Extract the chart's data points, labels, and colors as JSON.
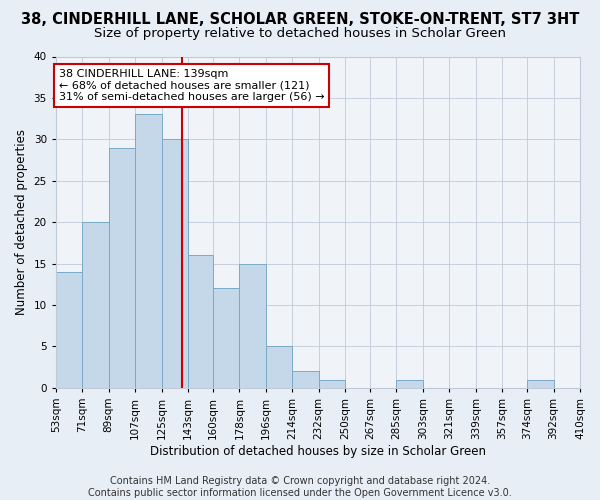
{
  "title": "38, CINDERHILL LANE, SCHOLAR GREEN, STOKE-ON-TRENT, ST7 3HT",
  "subtitle": "Size of property relative to detached houses in Scholar Green",
  "xlabel": "Distribution of detached houses by size in Scholar Green",
  "ylabel": "Number of detached properties",
  "bin_edges": [
    53,
    71,
    89,
    107,
    125,
    143,
    160,
    178,
    196,
    214,
    232,
    250,
    267,
    285,
    303,
    321,
    339,
    357,
    374,
    392,
    410
  ],
  "counts": [
    14,
    20,
    29,
    33,
    30,
    16,
    12,
    15,
    5,
    2,
    1,
    0,
    0,
    1,
    0,
    0,
    0,
    0,
    1,
    0
  ],
  "bar_color": "#c5d8ea",
  "bar_edge_color": "#7aaac8",
  "vline_x": 139,
  "vline_color": "#cc0000",
  "annotation_line1": "38 CINDERHILL LANE: 139sqm",
  "annotation_line2": "← 68% of detached houses are smaller (121)",
  "annotation_line3": "31% of semi-detached houses are larger (56) →",
  "annotation_box_color": "#cc0000",
  "annotation_box_bg": "#ffffff",
  "ylim": [
    0,
    40
  ],
  "yticks": [
    0,
    5,
    10,
    15,
    20,
    25,
    30,
    35,
    40
  ],
  "tick_labels": [
    "53sqm",
    "71sqm",
    "89sqm",
    "107sqm",
    "125sqm",
    "143sqm",
    "160sqm",
    "178sqm",
    "196sqm",
    "214sqm",
    "232sqm",
    "250sqm",
    "267sqm",
    "285sqm",
    "303sqm",
    "321sqm",
    "339sqm",
    "357sqm",
    "374sqm",
    "392sqm",
    "410sqm"
  ],
  "footer_text": "Contains HM Land Registry data © Crown copyright and database right 2024.\nContains public sector information licensed under the Open Government Licence v3.0.",
  "bg_color": "#e8eef5",
  "plot_bg_color": "#f0f4f9",
  "grid_color": "#c0cad6",
  "title_fontsize": 10.5,
  "subtitle_fontsize": 9.5,
  "label_fontsize": 8.5,
  "tick_fontsize": 7.5,
  "footer_fontsize": 7,
  "annot_fontsize": 8
}
